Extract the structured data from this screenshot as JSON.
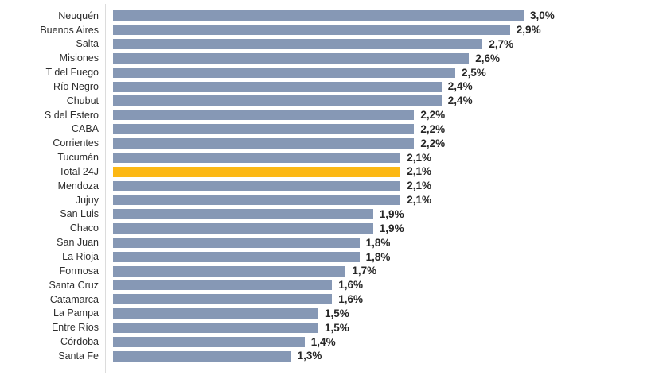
{
  "chart_data": {
    "type": "bar",
    "orientation": "horizontal",
    "title": "",
    "xlabel": "",
    "ylabel": "",
    "xlim": [
      0,
      3.0
    ],
    "grid": false,
    "legend": false,
    "categories": [
      "Neuquén",
      "Buenos Aires",
      "Salta",
      "Misiones",
      "T del Fuego",
      "Río Negro",
      "Chubut",
      "S del Estero",
      "CABA",
      "Corrientes",
      "Tucumán",
      "Total 24J",
      "Mendoza",
      "Jujuy",
      "San Luis",
      "Chaco",
      "San Juan",
      "La Rioja",
      "Formosa",
      "Santa Cruz",
      "Catamarca",
      "La Pampa",
      "Entre Ríos",
      "Córdoba",
      "Santa Fe"
    ],
    "values": [
      3.0,
      2.9,
      2.7,
      2.6,
      2.5,
      2.4,
      2.4,
      2.2,
      2.2,
      2.2,
      2.1,
      2.1,
      2.1,
      2.1,
      1.9,
      1.9,
      1.8,
      1.8,
      1.7,
      1.6,
      1.6,
      1.5,
      1.5,
      1.4,
      1.3
    ],
    "value_labels": [
      "3,0%",
      "2,9%",
      "2,7%",
      "2,6%",
      "2,5%",
      "2,4%",
      "2,4%",
      "2,2%",
      "2,2%",
      "2,2%",
      "2,1%",
      "2,1%",
      "2,1%",
      "2,1%",
      "1,9%",
      "1,9%",
      "1,8%",
      "1,8%",
      "1,7%",
      "1,6%",
      "1,6%",
      "1,5%",
      "1,5%",
      "1,4%",
      "1,3%"
    ],
    "highlight_index": 11,
    "highlight_category": "Total 24J",
    "colors": {
      "bar": "#8698B5",
      "highlight": "#FCB814",
      "category_label": "#2E2E2E",
      "value_label": "#262626",
      "axis_line": "#DCDCDC",
      "background": "#FFFFFF"
    }
  }
}
